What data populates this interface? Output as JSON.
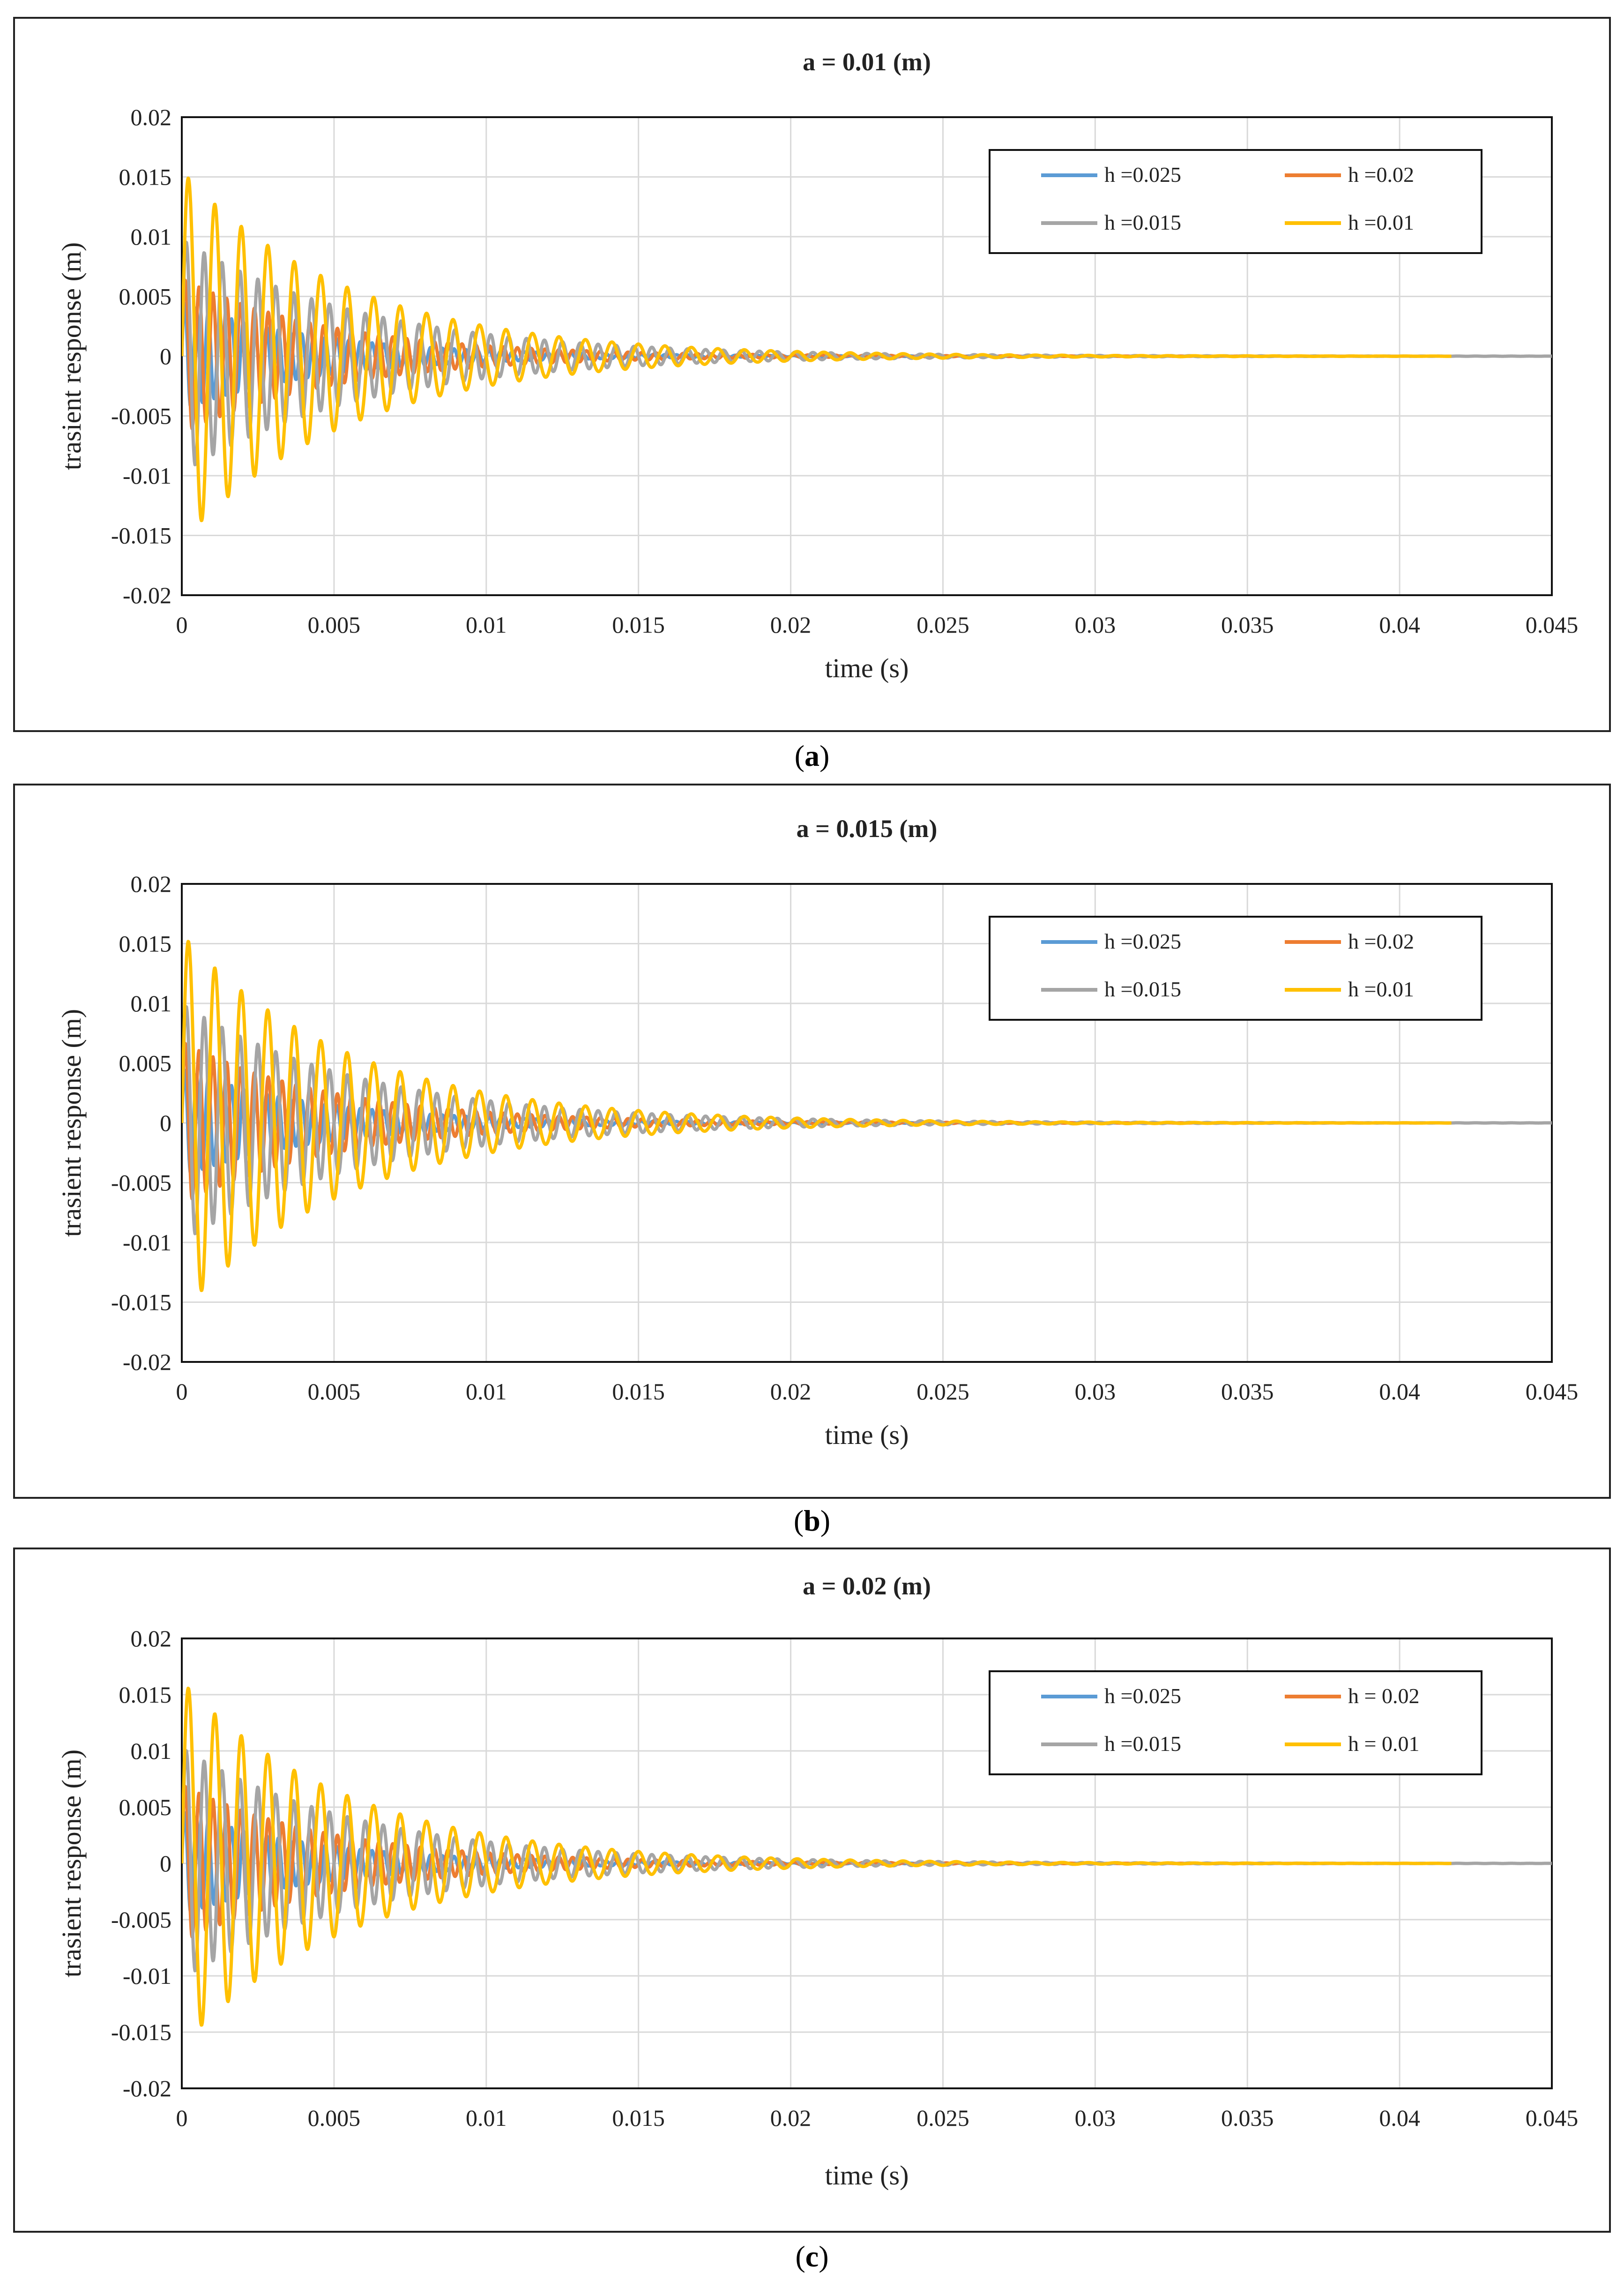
{
  "figure": {
    "series_colors": {
      "h =0.025": "#5b9bd5",
      "h =0.02": "#ed7d31",
      "h =0.015": "#a5a5a5",
      "h =0.01": "#ffc000"
    }
  },
  "chart_data": [
    {
      "panel_label": "a",
      "type": "line",
      "title": "a = 0.01 (m)",
      "xlabel": "time (s)",
      "ylabel": "trasient response (m)",
      "xlim": [
        0,
        0.045
      ],
      "ylim": [
        -0.02,
        0.02
      ],
      "x_ticks": [
        "0",
        "0.005",
        "0.01",
        "0.015",
        "0.02",
        "0.025",
        "0.03",
        "0.035",
        "0.04",
        "0.045"
      ],
      "y_ticks": [
        "0.02",
        "0.015",
        "0.01",
        "0.005",
        "0",
        "-0.005",
        "-0.01",
        "-0.015",
        "-0.02"
      ],
      "grid": true,
      "legend_position": "top-right",
      "x_end": 0.0417,
      "series": [
        {
          "name": "h =0.025",
          "color": "#5b9bd5",
          "amplitude": 0.0045,
          "frequency": 2600,
          "decay_time": 0.0045,
          "x_end": 0.0417
        },
        {
          "name": "h =0.02",
          "color": "#ed7d31",
          "amplitude": 0.0065,
          "frequency": 2200,
          "decay_time": 0.005,
          "x_end": 0.0417
        },
        {
          "name": "h =0.015",
          "color": "#a5a5a5",
          "amplitude": 0.0098,
          "frequency": 1700,
          "decay_time": 0.006,
          "x_end": 0.045
        },
        {
          "name": "h =0.01",
          "color": "#ffc000",
          "amplitude": 0.0155,
          "frequency": 1150,
          "decay_time": 0.0055,
          "x_end": 0.0417
        }
      ]
    },
    {
      "panel_label": "b",
      "type": "line",
      "title": "a = 0.015 (m)",
      "xlabel": "time (s)",
      "ylabel": "trasient response (m)",
      "xlim": [
        0,
        0.045
      ],
      "ylim": [
        -0.02,
        0.02
      ],
      "x_ticks": [
        "0",
        "0.005",
        "0.01",
        "0.015",
        "0.02",
        "0.025",
        "0.03",
        "0.035",
        "0.04",
        "0.045"
      ],
      "y_ticks": [
        "0.02",
        "0.015",
        "0.01",
        "0.005",
        "0",
        "-0.005",
        "-0.01",
        "-0.015",
        "-0.02"
      ],
      "grid": true,
      "legend_position": "top-right",
      "x_end": 0.0417,
      "series": [
        {
          "name": "h =0.025",
          "color": "#5b9bd5",
          "amplitude": 0.0045,
          "frequency": 2600,
          "decay_time": 0.0045,
          "x_end": 0.0417
        },
        {
          "name": "h =0.02",
          "color": "#ed7d31",
          "amplitude": 0.0068,
          "frequency": 2200,
          "decay_time": 0.005,
          "x_end": 0.0417
        },
        {
          "name": "h =0.015",
          "color": "#a5a5a5",
          "amplitude": 0.01,
          "frequency": 1700,
          "decay_time": 0.006,
          "x_end": 0.045
        },
        {
          "name": "h =0.01",
          "color": "#ffc000",
          "amplitude": 0.0158,
          "frequency": 1150,
          "decay_time": 0.0055,
          "x_end": 0.0417
        }
      ]
    },
    {
      "panel_label": "c",
      "type": "line",
      "title": "a = 0.02 (m)",
      "xlabel": "time (s)",
      "ylabel": "trasient response (m)",
      "xlim": [
        0,
        0.045
      ],
      "ylim": [
        -0.02,
        0.02
      ],
      "x_ticks": [
        "0",
        "0.005",
        "0.01",
        "0.015",
        "0.02",
        "0.025",
        "0.03",
        "0.035",
        "0.04",
        "0.045"
      ],
      "y_ticks": [
        "0.02",
        "0.015",
        "0.01",
        "0.005",
        "0",
        "-0.005",
        "-0.01",
        "-0.015",
        "-0.02"
      ],
      "grid": true,
      "legend_position": "top-right",
      "x_end": 0.0417,
      "series": [
        {
          "name": "h =0.025",
          "color": "#5b9bd5",
          "amplitude": 0.0046,
          "frequency": 2600,
          "decay_time": 0.0045,
          "x_end": 0.0417
        },
        {
          "name": "h = 0.02",
          "color": "#ed7d31",
          "amplitude": 0.007,
          "frequency": 2200,
          "decay_time": 0.005,
          "x_end": 0.0417
        },
        {
          "name": "h =0.015",
          "color": "#a5a5a5",
          "amplitude": 0.0103,
          "frequency": 1700,
          "decay_time": 0.006,
          "x_end": 0.045
        },
        {
          "name": "h = 0.01",
          "color": "#ffc000",
          "amplitude": 0.0162,
          "frequency": 1150,
          "decay_time": 0.0055,
          "x_end": 0.0417
        }
      ]
    }
  ]
}
